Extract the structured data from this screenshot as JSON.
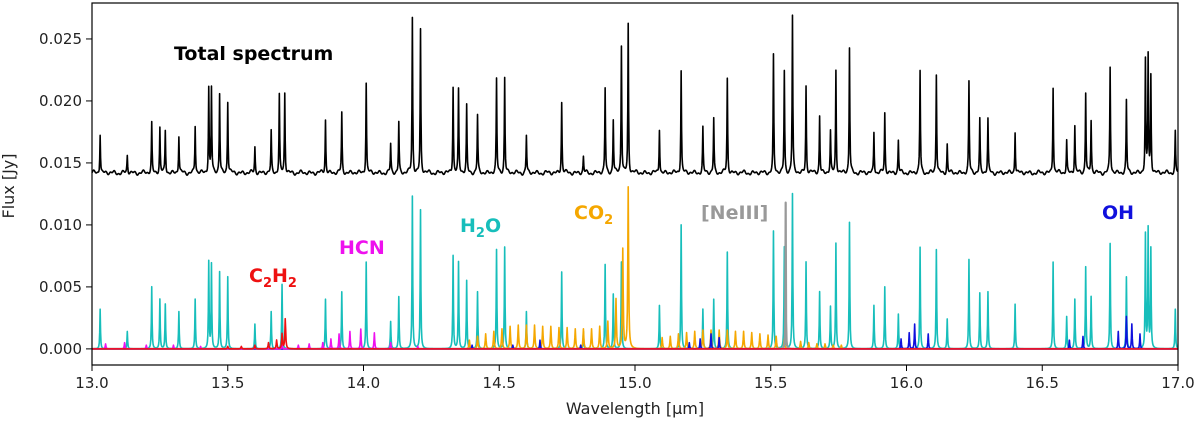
{
  "chart_data": {
    "type": "line",
    "xlabel": "Wavelength [μm]",
    "ylabel": "Flux [Jy]",
    "xlim": [
      13.0,
      17.0
    ],
    "ylim": [
      -0.0013,
      0.0279
    ],
    "x_ticks": [
      "13.0",
      "13.5",
      "14.0",
      "14.5",
      "15.0",
      "15.5",
      "16.0",
      "16.5",
      "17.0"
    ],
    "y_ticks": [
      "0.000",
      "0.005",
      "0.010",
      "0.015",
      "0.020",
      "0.025"
    ],
    "zero_line": 0.0,
    "annotations": [
      {
        "text": "Total spectrum",
        "color": "#000000"
      },
      {
        "main": "C",
        "sub1": "2",
        "mid": "H",
        "sub2": "2",
        "color": "#ee1111"
      },
      {
        "text": "HCN",
        "color": "#ee11ee"
      },
      {
        "main": "H",
        "sub1": "2",
        "mid": "O",
        "sub2": "",
        "color": "#17bebb"
      },
      {
        "main": "CO",
        "sub1": "2",
        "mid": "",
        "sub2": "",
        "color": "#f5a700"
      },
      {
        "text": "[NeIII]",
        "color": "#999999"
      },
      {
        "text": "OH",
        "color": "#1010dd"
      }
    ],
    "series": [
      {
        "name": "Total spectrum",
        "color": "#000000",
        "baseline": 0.0142,
        "width": 0.0028,
        "lines": [
          [
            13.03,
            0.0174
          ],
          [
            13.13,
            0.0156
          ],
          [
            13.22,
            0.0182
          ],
          [
            13.25,
            0.0178
          ],
          [
            13.27,
            0.0176
          ],
          [
            13.32,
            0.0172
          ],
          [
            13.38,
            0.018
          ],
          [
            13.43,
            0.0211
          ],
          [
            13.44,
            0.021
          ],
          [
            13.47,
            0.0206
          ],
          [
            13.5,
            0.02
          ],
          [
            13.6,
            0.0163
          ],
          [
            13.66,
            0.0175
          ],
          [
            13.69,
            0.0205
          ],
          [
            13.71,
            0.0206
          ],
          [
            13.86,
            0.0185
          ],
          [
            13.92,
            0.019
          ],
          [
            14.01,
            0.0215
          ],
          [
            14.1,
            0.0165
          ],
          [
            14.13,
            0.0183
          ],
          [
            14.18,
            0.0267
          ],
          [
            14.21,
            0.0257
          ],
          [
            14.33,
            0.0212
          ],
          [
            14.35,
            0.0208
          ],
          [
            14.38,
            0.0196
          ],
          [
            14.42,
            0.0188
          ],
          [
            14.49,
            0.0217
          ],
          [
            14.52,
            0.0219
          ],
          [
            14.6,
            0.0172
          ],
          [
            14.73,
            0.0199
          ],
          [
            14.81,
            0.0155
          ],
          [
            14.89,
            0.021
          ],
          [
            14.92,
            0.0185
          ],
          [
            14.95,
            0.0245
          ],
          [
            14.975,
            0.0262
          ],
          [
            15.09,
            0.0178
          ],
          [
            15.17,
            0.0225
          ],
          [
            15.25,
            0.0178
          ],
          [
            15.29,
            0.0186
          ],
          [
            15.34,
            0.0218
          ],
          [
            15.51,
            0.0236
          ],
          [
            15.55,
            0.0224
          ],
          [
            15.58,
            0.0268
          ],
          [
            15.63,
            0.0212
          ],
          [
            15.68,
            0.0188
          ],
          [
            15.72,
            0.0175
          ],
          [
            15.74,
            0.0225
          ],
          [
            15.79,
            0.0243
          ],
          [
            15.88,
            0.0175
          ],
          [
            15.92,
            0.019
          ],
          [
            15.97,
            0.0168
          ],
          [
            16.05,
            0.0224
          ],
          [
            16.11,
            0.0222
          ],
          [
            16.15,
            0.0165
          ],
          [
            16.23,
            0.0215
          ],
          [
            16.27,
            0.0185
          ],
          [
            16.3,
            0.0185
          ],
          [
            16.4,
            0.0176
          ],
          [
            16.54,
            0.0212
          ],
          [
            16.59,
            0.0168
          ],
          [
            16.62,
            0.018
          ],
          [
            16.66,
            0.0207
          ],
          [
            16.68,
            0.0184
          ],
          [
            16.75,
            0.0227
          ],
          [
            16.81,
            0.02
          ],
          [
            16.88,
            0.0232
          ],
          [
            16.89,
            0.0236
          ],
          [
            16.9,
            0.022
          ],
          [
            16.99,
            0.0175
          ]
        ]
      },
      {
        "name": "H2O",
        "color": "#17bebb",
        "baseline": 0.0,
        "width": 0.0028,
        "lines": [
          [
            13.03,
            0.0032
          ],
          [
            13.13,
            0.0014
          ],
          [
            13.22,
            0.005
          ],
          [
            13.25,
            0.004
          ],
          [
            13.27,
            0.0036
          ],
          [
            13.32,
            0.003
          ],
          [
            13.38,
            0.004
          ],
          [
            13.43,
            0.007
          ],
          [
            13.44,
            0.0068
          ],
          [
            13.47,
            0.0062
          ],
          [
            13.5,
            0.0058
          ],
          [
            13.6,
            0.002
          ],
          [
            13.66,
            0.003
          ],
          [
            13.7,
            0.0052
          ],
          [
            13.86,
            0.004
          ],
          [
            13.92,
            0.0046
          ],
          [
            14.01,
            0.007
          ],
          [
            14.1,
            0.0022
          ],
          [
            14.13,
            0.0042
          ],
          [
            14.18,
            0.0123
          ],
          [
            14.21,
            0.0112
          ],
          [
            14.33,
            0.0075
          ],
          [
            14.35,
            0.007
          ],
          [
            14.38,
            0.0055
          ],
          [
            14.42,
            0.0046
          ],
          [
            14.49,
            0.008
          ],
          [
            14.52,
            0.0082
          ],
          [
            14.6,
            0.003
          ],
          [
            14.73,
            0.0062
          ],
          [
            14.81,
            0.0014
          ],
          [
            14.89,
            0.0068
          ],
          [
            14.92,
            0.0044
          ],
          [
            14.95,
            0.007
          ],
          [
            15.09,
            0.0035
          ],
          [
            15.17,
            0.01
          ],
          [
            15.25,
            0.0032
          ],
          [
            15.29,
            0.004
          ],
          [
            15.34,
            0.0078
          ],
          [
            15.51,
            0.0095
          ],
          [
            15.55,
            0.0082
          ],
          [
            15.58,
            0.0125
          ],
          [
            15.63,
            0.007
          ],
          [
            15.68,
            0.0046
          ],
          [
            15.72,
            0.0034
          ],
          [
            15.74,
            0.0085
          ],
          [
            15.79,
            0.0102
          ],
          [
            15.88,
            0.0035
          ],
          [
            15.92,
            0.005
          ],
          [
            15.97,
            0.0028
          ],
          [
            16.05,
            0.0082
          ],
          [
            16.11,
            0.008
          ],
          [
            16.15,
            0.0024
          ],
          [
            16.23,
            0.0072
          ],
          [
            16.27,
            0.0045
          ],
          [
            16.3,
            0.0046
          ],
          [
            16.4,
            0.0036
          ],
          [
            16.54,
            0.007
          ],
          [
            16.59,
            0.0026
          ],
          [
            16.62,
            0.004
          ],
          [
            16.66,
            0.0066
          ],
          [
            16.68,
            0.0042
          ],
          [
            16.75,
            0.0085
          ],
          [
            16.81,
            0.0058
          ],
          [
            16.88,
            0.0092
          ],
          [
            16.89,
            0.0096
          ],
          [
            16.9,
            0.008
          ],
          [
            16.99,
            0.0032
          ]
        ]
      },
      {
        "name": "CO2",
        "color": "#f5a700",
        "baseline": 0.0,
        "width": 0.0036,
        "lines": [
          [
            14.39,
            0.0007
          ],
          [
            14.42,
            0.001
          ],
          [
            14.45,
            0.0012
          ],
          [
            14.48,
            0.0014
          ],
          [
            14.51,
            0.0016
          ],
          [
            14.54,
            0.0018
          ],
          [
            14.57,
            0.0019
          ],
          [
            14.6,
            0.0019
          ],
          [
            14.63,
            0.0019
          ],
          [
            14.66,
            0.0018
          ],
          [
            14.69,
            0.0018
          ],
          [
            14.72,
            0.0017
          ],
          [
            14.75,
            0.0017
          ],
          [
            14.78,
            0.0016
          ],
          [
            14.81,
            0.0016
          ],
          [
            14.84,
            0.0016
          ],
          [
            14.87,
            0.0018
          ],
          [
            14.9,
            0.0022
          ],
          [
            14.93,
            0.004
          ],
          [
            14.955,
            0.008
          ],
          [
            14.975,
            0.013
          ],
          [
            15.1,
            0.0009
          ],
          [
            15.13,
            0.001
          ],
          [
            15.16,
            0.0012
          ],
          [
            15.19,
            0.0013
          ],
          [
            15.22,
            0.0014
          ],
          [
            15.25,
            0.0015
          ],
          [
            15.28,
            0.0015
          ],
          [
            15.31,
            0.0015
          ],
          [
            15.34,
            0.0015
          ],
          [
            15.37,
            0.0014
          ],
          [
            15.4,
            0.0014
          ],
          [
            15.43,
            0.0013
          ],
          [
            15.46,
            0.0012
          ],
          [
            15.49,
            0.0011
          ],
          [
            15.52,
            0.001
          ],
          [
            15.55,
            0.0008
          ],
          [
            15.61,
            0.0006
          ],
          [
            15.64,
            0.0005
          ],
          [
            15.67,
            0.0004
          ],
          [
            15.7,
            0.0004
          ],
          [
            15.73,
            0.0003
          ],
          [
            15.76,
            0.0003
          ]
        ]
      },
      {
        "name": "[NeIII]",
        "color": "#999999",
        "baseline": 0.0,
        "width": 0.0016,
        "lines": [
          [
            15.555,
            0.0118
          ]
        ]
      },
      {
        "name": "OH",
        "color": "#1010dd",
        "baseline": 0.0,
        "width": 0.0028,
        "lines": [
          [
            14.4,
            0.0003
          ],
          [
            14.55,
            0.0003
          ],
          [
            14.65,
            0.0007
          ],
          [
            14.8,
            0.0003
          ],
          [
            15.2,
            0.0005
          ],
          [
            15.24,
            0.0008
          ],
          [
            15.28,
            0.0012
          ],
          [
            15.31,
            0.0009
          ],
          [
            15.98,
            0.0008
          ],
          [
            16.01,
            0.0013
          ],
          [
            16.03,
            0.002
          ],
          [
            16.08,
            0.0012
          ],
          [
            16.6,
            0.0007
          ],
          [
            16.65,
            0.001
          ],
          [
            16.78,
            0.0014
          ],
          [
            16.81,
            0.0026
          ],
          [
            16.83,
            0.002
          ],
          [
            16.86,
            0.0012
          ]
        ]
      },
      {
        "name": "HCN",
        "color": "#ee11ee",
        "baseline": 0.0,
        "width": 0.003,
        "lines": [
          [
            13.05,
            0.0004
          ],
          [
            13.12,
            0.0005
          ],
          [
            13.2,
            0.0003
          ],
          [
            13.3,
            0.0003
          ],
          [
            13.4,
            0.0002
          ],
          [
            13.6,
            0.0002
          ],
          [
            13.7,
            0.0003
          ],
          [
            13.76,
            0.0003
          ],
          [
            13.8,
            0.0004
          ],
          [
            13.85,
            0.0005
          ],
          [
            13.88,
            0.0008
          ],
          [
            13.91,
            0.0012
          ],
          [
            13.95,
            0.0014
          ],
          [
            13.99,
            0.0016
          ],
          [
            14.04,
            0.0013
          ],
          [
            14.1,
            0.0005
          ],
          [
            14.2,
            0.0002
          ]
        ]
      },
      {
        "name": "C2H2",
        "color": "#ee1111",
        "baseline": 0.0,
        "width": 0.0035,
        "lines": [
          [
            13.5,
            0.0002
          ],
          [
            13.55,
            0.0002
          ],
          [
            13.6,
            0.0003
          ],
          [
            13.65,
            0.0005
          ],
          [
            13.68,
            0.0007
          ],
          [
            13.7,
            0.0012
          ],
          [
            13.712,
            0.0025
          ]
        ]
      }
    ]
  }
}
